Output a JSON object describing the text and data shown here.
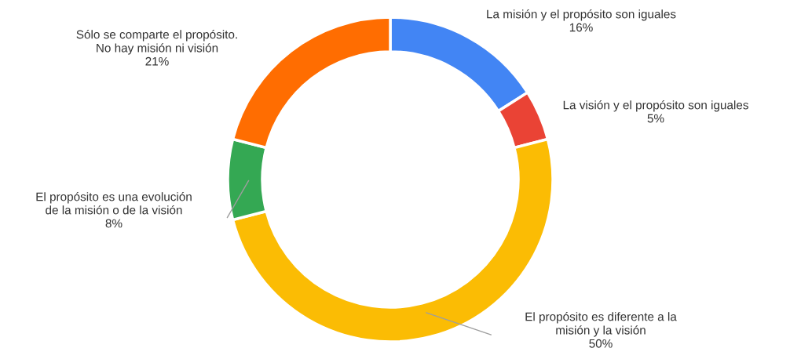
{
  "chart_data": {
    "type": "donut",
    "categories": [
      "La misión y el propósito son iguales",
      "La visión y el propósito son iguales",
      "El propósito es diferente a la\nmisión y la visión",
      "El propósito es una evolución\nde la misión o de la visión",
      "Sólo se comparte el propósito.\nNo hay misión ni visión"
    ],
    "values": [
      16,
      5,
      50,
      8,
      21
    ],
    "value_labels": [
      "16%",
      "5%",
      "50%",
      "8%",
      "21%"
    ],
    "colors": [
      "#4285f4",
      "#ea4335",
      "#fbbc04",
      "#34a853",
      "#ff6d01"
    ],
    "legend": false
  }
}
